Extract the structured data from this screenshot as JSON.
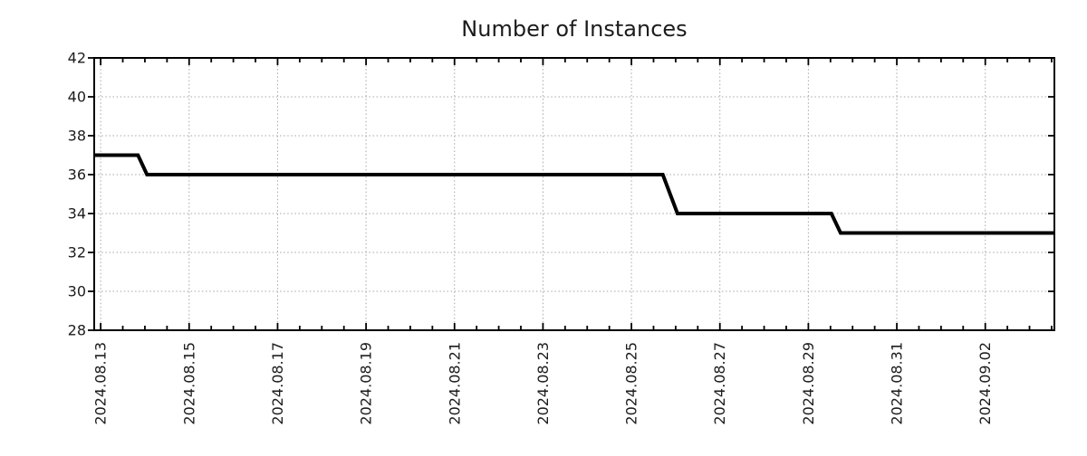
{
  "chart_data": {
    "type": "line",
    "title": "Number of Instances",
    "style": "monochrome step time-series with dotted grid (gnuplot-like)",
    "legend": false,
    "grid": {
      "show": true,
      "pattern": "dotted",
      "color": "#a6a6a6"
    },
    "colors": {
      "line": "#000000",
      "axis": "#000000",
      "text": "#1c1c1c",
      "background": "#ffffff"
    },
    "x_axis": {
      "tick_labels": [
        "2024.08.13",
        "2024.08.15",
        "2024.08.17",
        "2024.08.19",
        "2024.08.21",
        "2024.08.23",
        "2024.08.25",
        "2024.08.27",
        "2024.08.29",
        "2024.08.31",
        "2024.09.02"
      ],
      "label_rotation_deg": -90,
      "major_tick_interval_days": 2,
      "minor_tick_interval_days": 0.5,
      "range_days": [
        -0.146,
        21.5625
      ]
    },
    "y_axis": {
      "ticks": [
        28,
        30,
        32,
        34,
        36,
        38,
        40,
        42
      ],
      "range": [
        28,
        42
      ]
    },
    "series": [
      {
        "name": "instances",
        "color": "#000000",
        "line_width": 4,
        "points": [
          {
            "t": "2024-08-12 20:30",
            "v": 37
          },
          {
            "t": "2024-08-13 20:15",
            "v": 37
          },
          {
            "t": "2024-08-14 01:10",
            "v": 36
          },
          {
            "t": "2024-08-25 17:00",
            "v": 36
          },
          {
            "t": "2024-08-26 01:00",
            "v": 34
          },
          {
            "t": "2024-08-29 12:30",
            "v": 34
          },
          {
            "t": "2024-08-29 17:30",
            "v": 33
          },
          {
            "t": "2024-09-03 13:30",
            "v": 33
          }
        ]
      }
    ]
  }
}
